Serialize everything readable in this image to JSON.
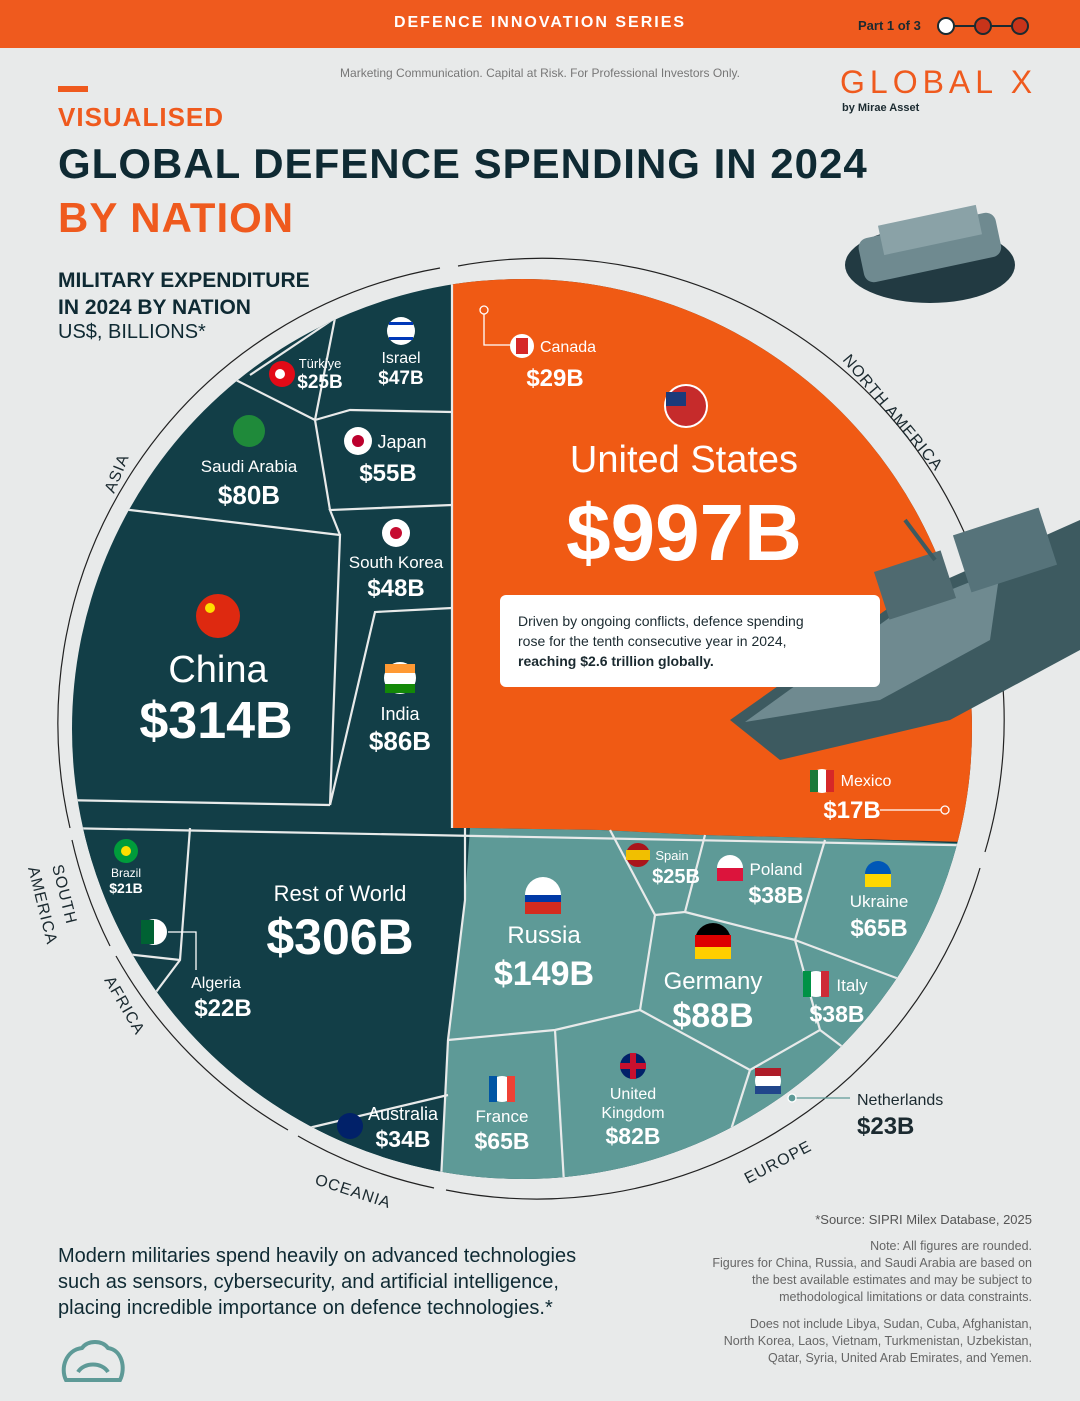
{
  "header": {
    "series": "DEFENCE INNOVATION SERIES",
    "part": "Part 1 of 3",
    "disclaimer": "Marketing Communication. Capital at Risk. For Professional Investors Only.",
    "brand": "GLOBAL X",
    "brand_sub": "by Mirae Asset"
  },
  "title": {
    "kicker": "VISUALISED",
    "line1": "GLOBAL DEFENCE SPENDING IN 2024",
    "line2": "BY NATION"
  },
  "subtitle": {
    "line1": "MILITARY EXPENDITURE",
    "line2": "IN 2024 BY NATION",
    "unit": "US$, BILLIONS*"
  },
  "callout": {
    "line1": "Driven by ongoing conflicts, defence spending",
    "line2": "rose for the tenth consecutive year in 2024,",
    "line3": "reaching $2.6 trillion globally."
  },
  "chart_data": {
    "type": "voronoi-treemap",
    "title": "GLOBAL DEFENCE SPENDING IN 2024 BY NATION",
    "unit": "US$, BILLIONS*",
    "regions": [
      {
        "name": "NORTH AMERICA",
        "items": [
          {
            "country": "United States",
            "value": 997,
            "label": "$997B"
          },
          {
            "country": "Canada",
            "value": 29,
            "label": "$29B"
          },
          {
            "country": "Mexico",
            "value": 17,
            "label": "$17B"
          }
        ]
      },
      {
        "name": "ASIA",
        "items": [
          {
            "country": "China",
            "value": 314,
            "label": "$314B"
          },
          {
            "country": "India",
            "value": 86,
            "label": "$86B"
          },
          {
            "country": "Saudi Arabia",
            "value": 80,
            "label": "$80B"
          },
          {
            "country": "Japan",
            "value": 55,
            "label": "$55B"
          },
          {
            "country": "South Korea",
            "value": 48,
            "label": "$48B"
          },
          {
            "country": "Israel",
            "value": 47,
            "label": "$47B"
          },
          {
            "country": "Türkiye",
            "value": 25,
            "label": "$25B"
          }
        ]
      },
      {
        "name": "EUROPE",
        "items": [
          {
            "country": "Russia",
            "value": 149,
            "label": "$149B"
          },
          {
            "country": "Germany",
            "value": 88,
            "label": "$88B"
          },
          {
            "country": "United Kingdom",
            "value": 82,
            "label": "$82B"
          },
          {
            "country": "Ukraine",
            "value": 65,
            "label": "$65B"
          },
          {
            "country": "France",
            "value": 65,
            "label": "$65B"
          },
          {
            "country": "Poland",
            "value": 38,
            "label": "$38B"
          },
          {
            "country": "Italy",
            "value": 38,
            "label": "$38B"
          },
          {
            "country": "Spain",
            "value": 25,
            "label": "$25B"
          },
          {
            "country": "Netherlands",
            "value": 23,
            "label": "$23B"
          }
        ]
      },
      {
        "name": "OCEANIA",
        "items": [
          {
            "country": "Australia",
            "value": 34,
            "label": "$34B"
          }
        ]
      },
      {
        "name": "SOUTH AMERICA",
        "items": [
          {
            "country": "Brazil",
            "value": 21,
            "label": "$21B"
          }
        ]
      },
      {
        "name": "AFRICA",
        "items": [
          {
            "country": "Algeria",
            "value": 22,
            "label": "$22B"
          }
        ]
      },
      {
        "name": "",
        "items": [
          {
            "country": "Rest of World",
            "value": 306,
            "label": "$306B"
          }
        ]
      }
    ],
    "colors": {
      "north_america": "#f05a14",
      "asia_row": "#123e47",
      "europe": "#5e9a97"
    }
  },
  "region_labels": {
    "north_america": "NORTH AMERICA",
    "asia": "ASIA",
    "south_america_1": "SOUTH",
    "south_america_2": "AMERICA",
    "africa": "AFRICA",
    "oceania": "OCEANIA",
    "europe": "EUROPE"
  },
  "labels": {
    "us_name": "United States",
    "us_value": "$997B",
    "canada_name": "Canada",
    "canada_value": "$29B",
    "mexico_name": "Mexico",
    "mexico_value": "$17B",
    "china_name": "China",
    "china_value": "$314B",
    "india_name": "India",
    "india_value": "$86B",
    "saudi_name": "Saudi Arabia",
    "saudi_value": "$80B",
    "japan_name": "Japan",
    "japan_value": "$55B",
    "korea_name": "South Korea",
    "korea_value": "$48B",
    "israel_name": "Israel",
    "israel_value": "$47B",
    "turkiye_name": "Türkiye",
    "turkiye_value": "$25B",
    "row_name": "Rest of World",
    "row_value": "$306B",
    "brazil_name": "Brazil",
    "brazil_value": "$21B",
    "algeria_name": "Algeria",
    "algeria_value": "$22B",
    "australia_name": "Australia",
    "australia_value": "$34B",
    "russia_name": "Russia",
    "russia_value": "$149B",
    "germany_name": "Germany",
    "germany_value": "$88B",
    "uk_name1": "United",
    "uk_name2": "Kingdom",
    "uk_value": "$82B",
    "france_name": "France",
    "france_value": "$65B",
    "ukraine_name": "Ukraine",
    "ukraine_value": "$65B",
    "poland_name": "Poland",
    "poland_value": "$38B",
    "italy_name": "Italy",
    "italy_value": "$38B",
    "spain_name": "Spain",
    "spain_value": "$25B",
    "netherlands_name": "Netherlands",
    "netherlands_value": "$23B"
  },
  "footer": {
    "source": "*Source: SIPRI Milex Database, 2025",
    "note1": "Note: All figures are rounded.",
    "note2": "Figures for China, Russia, and Saudi Arabia are based on",
    "note3": "the best available estimates and may be subject to",
    "note4": "methodological limitations or data constraints.",
    "excl1": "Does not include Libya, Sudan, Cuba, Afghanistan,",
    "excl2": "North Korea, Laos, Vietnam, Turkmenistan, Uzbekistan,",
    "excl3": "Qatar, Syria, United Arab Emirates, and Yemen.",
    "body1": "Modern militaries spend heavily on advanced technologies",
    "body2": "such as sensors, cybersecurity, and artificial intelligence,",
    "body3": "placing incredible importance on defence technologies.*"
  }
}
